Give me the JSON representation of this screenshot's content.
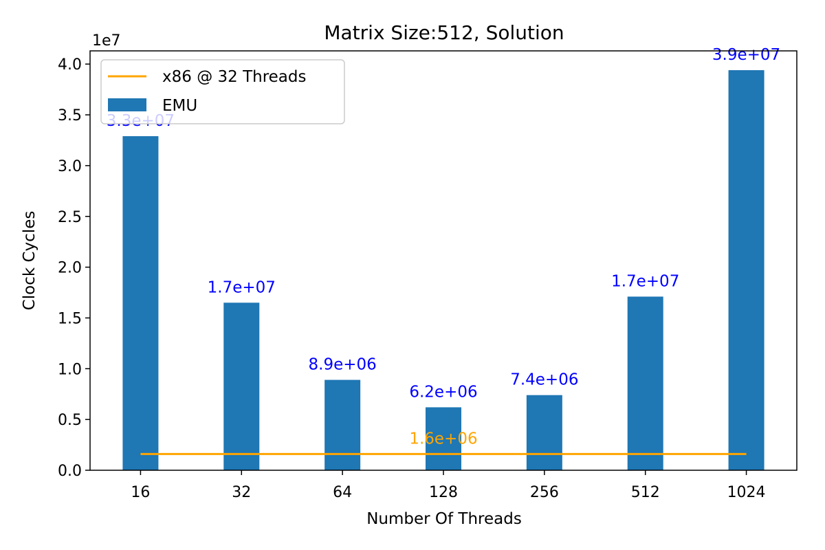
{
  "chart_data": {
    "type": "bar",
    "title": "Matrix Size:512, Solution",
    "xlabel": "Number Of Threads",
    "ylabel": "Clock Cycles",
    "y_scale_label": "1e7",
    "categories": [
      "16",
      "32",
      "64",
      "128",
      "256",
      "512",
      "1024"
    ],
    "series": [
      {
        "name": "EMU",
        "values": [
          32900000,
          16500000,
          8900000,
          6200000,
          7400000,
          17100000,
          39400000
        ],
        "labels": [
          "3.3e+07",
          "1.7e+07",
          "8.9e+06",
          "6.2e+06",
          "7.4e+06",
          "1.7e+07",
          "3.9e+07"
        ],
        "color": "#1f77b4",
        "label_color": "#0000ff"
      }
    ],
    "reference_line": {
      "name": "x86 @ 32 Threads",
      "value": 1600000,
      "label": "1.6e+06",
      "color": "#ffa500"
    },
    "yticks": [
      "0.0",
      "0.5",
      "1.0",
      "1.5",
      "2.0",
      "2.5",
      "3.0",
      "3.5",
      "4.0"
    ],
    "ytick_values": [
      0,
      5000000,
      10000000,
      15000000,
      20000000,
      25000000,
      30000000,
      35000000,
      40000000
    ],
    "ylim": [
      0,
      41300000
    ],
    "grid": false,
    "legend_position": "top-left"
  }
}
